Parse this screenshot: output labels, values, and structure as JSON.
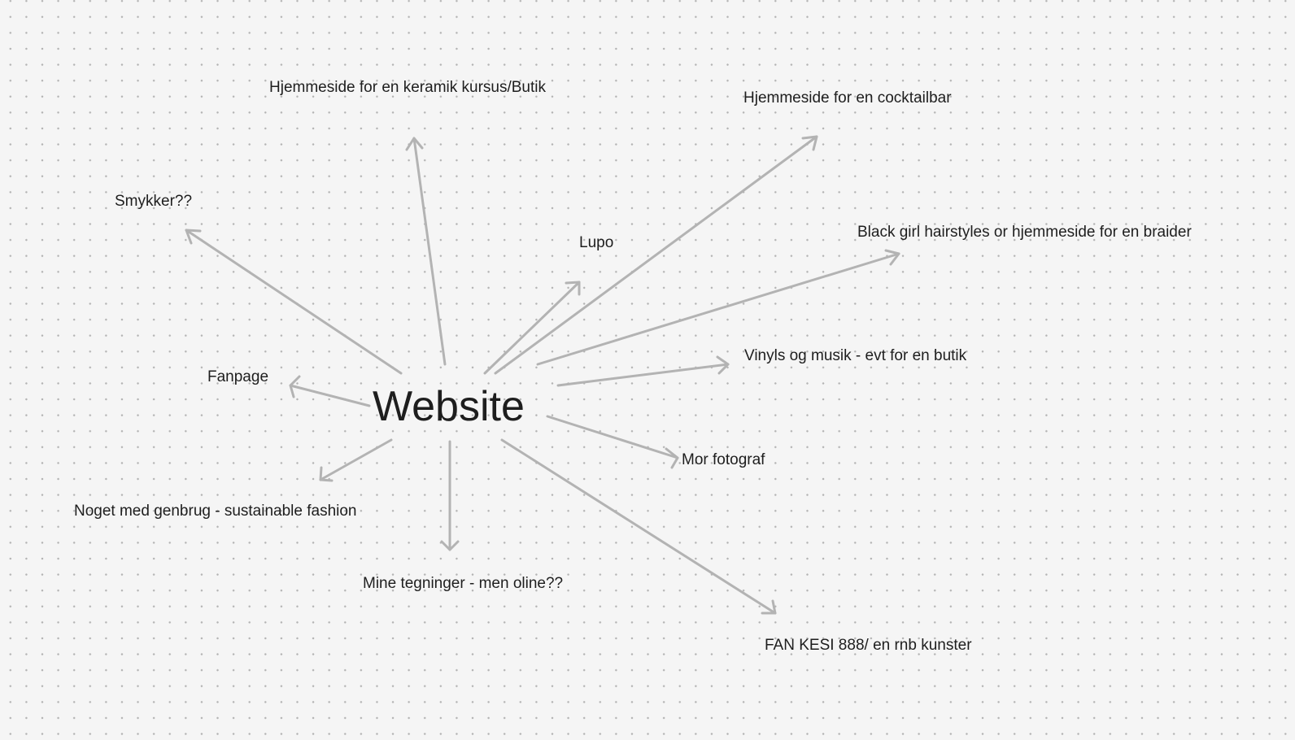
{
  "center": {
    "label": "Website"
  },
  "ideas": [
    {
      "id": "keramik",
      "label": "Hjemmeside for en keramik kursus/Butik"
    },
    {
      "id": "cocktailbar",
      "label": "Hjemmeside for en cocktailbar"
    },
    {
      "id": "smykker",
      "label": "Smykker??"
    },
    {
      "id": "lupo",
      "label": "Lupo"
    },
    {
      "id": "braider",
      "label": "Black girl hairstyles or hjemmeside for en braider"
    },
    {
      "id": "vinyls",
      "label": "Vinyls og musik - evt for en butik"
    },
    {
      "id": "fanpage",
      "label": "Fanpage"
    },
    {
      "id": "fotograf",
      "label": "Mor fotograf"
    },
    {
      "id": "genbrug",
      "label": "Noget med genbrug - sustainable fashion"
    },
    {
      "id": "tegninger",
      "label": "Mine tegninger - men oline??"
    },
    {
      "id": "fan-kesi",
      "label": "FAN KESI 888/ en rnb kunster"
    }
  ],
  "colors": {
    "background": "#f5f5f5",
    "dot": "#b3b3b3",
    "arrow": "#b3b3b3",
    "text": "#1e1e1e"
  }
}
